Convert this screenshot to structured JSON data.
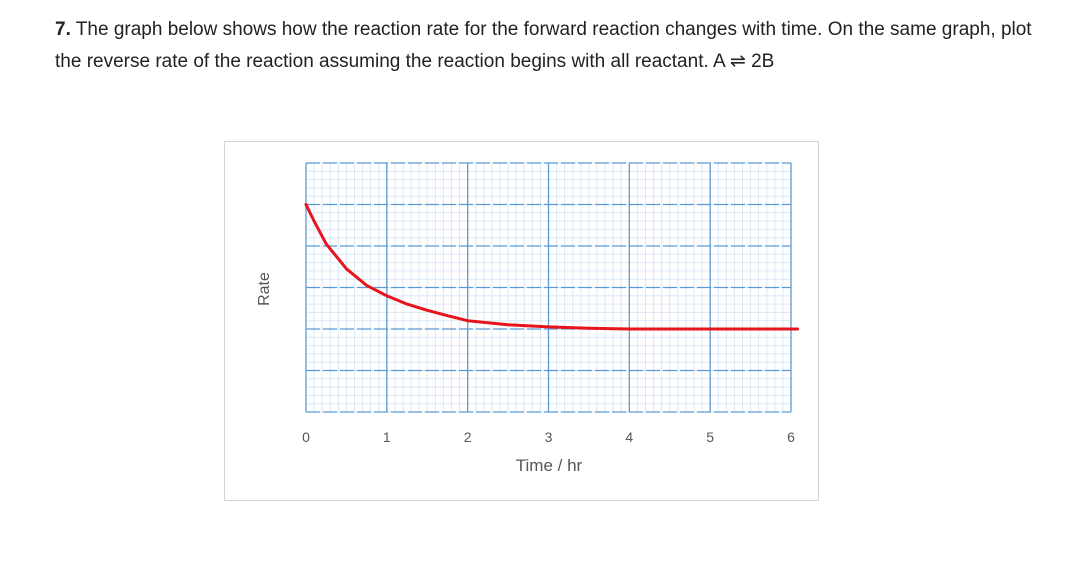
{
  "question": {
    "number": "7.",
    "text": "The graph below shows how the reaction rate for the forward reaction changes with time.  On the same graph, plot the reverse rate of the reaction assuming the reaction begins with all reactant.  A ⇌ 2B"
  },
  "chart_data": {
    "type": "line",
    "title": "",
    "xlabel": "Time / hr",
    "ylabel": "Rate",
    "xlim": [
      0,
      6
    ],
    "ylim": [
      0,
      6
    ],
    "x_ticks": [
      "0",
      "1",
      "2",
      "3",
      "4",
      "5",
      "6"
    ],
    "y_tick_labels_shown": false,
    "grid": true,
    "line_color": "#e8141b",
    "grid_color": "#5b9bd5",
    "series": [
      {
        "x": [
          0,
          0.1,
          0.25,
          0.5,
          0.75,
          1,
          1.25,
          1.5,
          1.75,
          2,
          2.5,
          3,
          3.5,
          4,
          5,
          6.08
        ],
        "y": [
          5.0,
          4.6,
          4.05,
          3.45,
          3.05,
          2.8,
          2.6,
          2.45,
          2.32,
          2.2,
          2.1,
          2.05,
          2.02,
          2.0,
          2.0,
          2.0
        ]
      }
    ]
  }
}
